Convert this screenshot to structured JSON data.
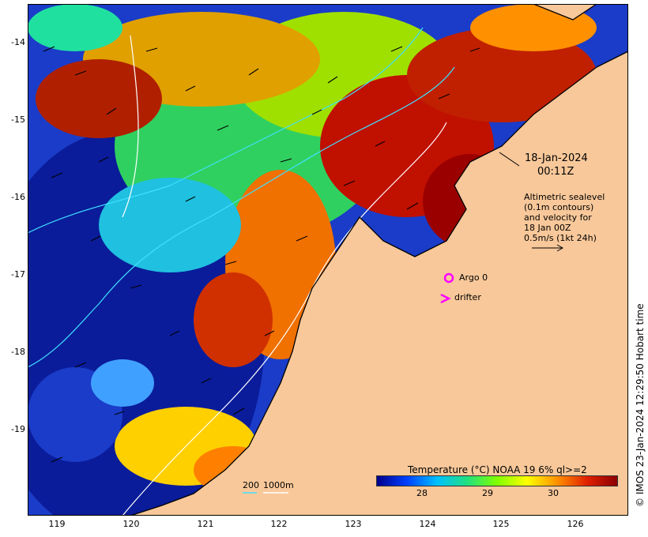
{
  "map": {
    "type": "sea-surface-temperature",
    "region_lat": [
      -20,
      -13.5
    ],
    "region_lon": [
      118.6,
      126.7
    ],
    "y_ticks": [
      "-14",
      "-15",
      "-16",
      "-17",
      "-18",
      "-19"
    ],
    "x_ticks": [
      "119",
      "120",
      "121",
      "122",
      "123",
      "124",
      "125",
      "126"
    ]
  },
  "annotation": {
    "date": "18-Jan-2024",
    "time": "00:11Z"
  },
  "altimetry_note": {
    "line1": "Altimetric sealevel",
    "line2": "(0.1m contours)",
    "line3": "and velocity for",
    "line4": "18 Jan 00Z",
    "line5": "0.5m/s (1kt 24h)"
  },
  "legend_items": {
    "argo": "Argo 0",
    "drifter": "drifter"
  },
  "bathymetry_scale": {
    "label_200": "200",
    "label_1000": "1000m"
  },
  "colorbar": {
    "title": "Temperature (°C) NOAA 19 6% ql>=2",
    "ticks": [
      "28",
      "29",
      "30"
    ],
    "range": [
      27.2,
      30.8
    ],
    "colors": [
      "#00008b",
      "#0040ff",
      "#00c0ff",
      "#20e080",
      "#80ff00",
      "#ffff00",
      "#ff9000",
      "#e02000",
      "#8b0000"
    ]
  },
  "colors": {
    "land": "#f8c89a",
    "argo_marker": "#ff00ff",
    "drifter_marker": "#ff00ff",
    "isobath_200": "#40e0ff",
    "isobath_1000": "#ffffff"
  },
  "credit": "© IMOS 23-Jan-2024 12:29:50 Hobart time"
}
